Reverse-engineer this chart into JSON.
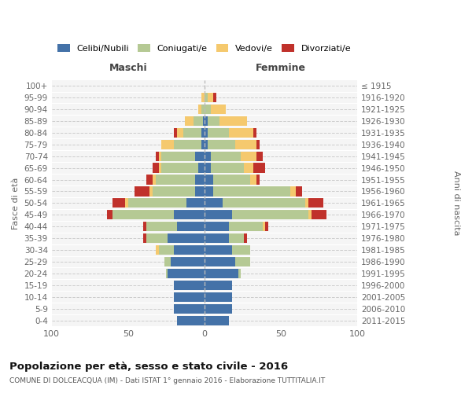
{
  "age_groups": [
    "0-4",
    "5-9",
    "10-14",
    "15-19",
    "20-24",
    "25-29",
    "30-34",
    "35-39",
    "40-44",
    "45-49",
    "50-54",
    "55-59",
    "60-64",
    "65-69",
    "70-74",
    "75-79",
    "80-84",
    "85-89",
    "90-94",
    "95-99",
    "100+"
  ],
  "birth_years": [
    "2011-2015",
    "2006-2010",
    "2001-2005",
    "1996-2000",
    "1991-1995",
    "1986-1990",
    "1981-1985",
    "1976-1980",
    "1971-1975",
    "1966-1970",
    "1961-1965",
    "1956-1960",
    "1951-1955",
    "1946-1950",
    "1941-1945",
    "1936-1940",
    "1931-1935",
    "1926-1930",
    "1921-1925",
    "1916-1920",
    "≤ 1915"
  ],
  "maschi": {
    "celibi": [
      18,
      20,
      20,
      20,
      24,
      22,
      20,
      24,
      18,
      20,
      12,
      6,
      6,
      4,
      6,
      2,
      2,
      1,
      0,
      0,
      0
    ],
    "coniugati": [
      0,
      0,
      0,
      0,
      1,
      4,
      10,
      14,
      20,
      40,
      38,
      28,
      26,
      24,
      22,
      18,
      12,
      6,
      2,
      0,
      0
    ],
    "vedovi": [
      0,
      0,
      0,
      0,
      0,
      0,
      2,
      0,
      0,
      0,
      2,
      2,
      2,
      2,
      2,
      8,
      4,
      6,
      2,
      2,
      0
    ],
    "divorziati": [
      0,
      0,
      0,
      0,
      0,
      0,
      0,
      2,
      2,
      4,
      8,
      10,
      4,
      4,
      2,
      0,
      2,
      0,
      0,
      0,
      0
    ]
  },
  "femmine": {
    "nubili": [
      16,
      18,
      18,
      18,
      22,
      20,
      18,
      16,
      16,
      18,
      12,
      6,
      6,
      4,
      4,
      2,
      2,
      2,
      0,
      0,
      0
    ],
    "coniugate": [
      0,
      0,
      0,
      0,
      2,
      10,
      12,
      10,
      22,
      50,
      54,
      50,
      24,
      22,
      20,
      18,
      14,
      8,
      4,
      2,
      0
    ],
    "vedove": [
      0,
      0,
      0,
      0,
      0,
      0,
      0,
      0,
      2,
      2,
      2,
      4,
      4,
      6,
      10,
      14,
      16,
      18,
      10,
      4,
      0
    ],
    "divorziate": [
      0,
      0,
      0,
      0,
      0,
      0,
      0,
      2,
      2,
      10,
      10,
      4,
      2,
      8,
      4,
      2,
      2,
      0,
      0,
      2,
      0
    ]
  },
  "colors": {
    "celibi_nubili": "#4472a8",
    "coniugati": "#b5c994",
    "vedovi": "#f5c96e",
    "divorziati": "#c0312b"
  },
  "xlim": 100,
  "title": "Popolazione per età, sesso e stato civile - 2016",
  "subtitle": "COMUNE DI DOLCEACQUA (IM) - Dati ISTAT 1° gennaio 2016 - Elaborazione TUTTITALIA.IT",
  "ylabel_left": "Fasce di età",
  "ylabel_right": "Anni di nascita",
  "xlabel_maschi": "Maschi",
  "xlabel_femmine": "Femmine",
  "legend_labels": [
    "Celibi/Nubili",
    "Coniugati/e",
    "Vedovi/e",
    "Divorziati/e"
  ],
  "background_color": "#ffffff",
  "plot_bg_color": "#f5f5f5"
}
